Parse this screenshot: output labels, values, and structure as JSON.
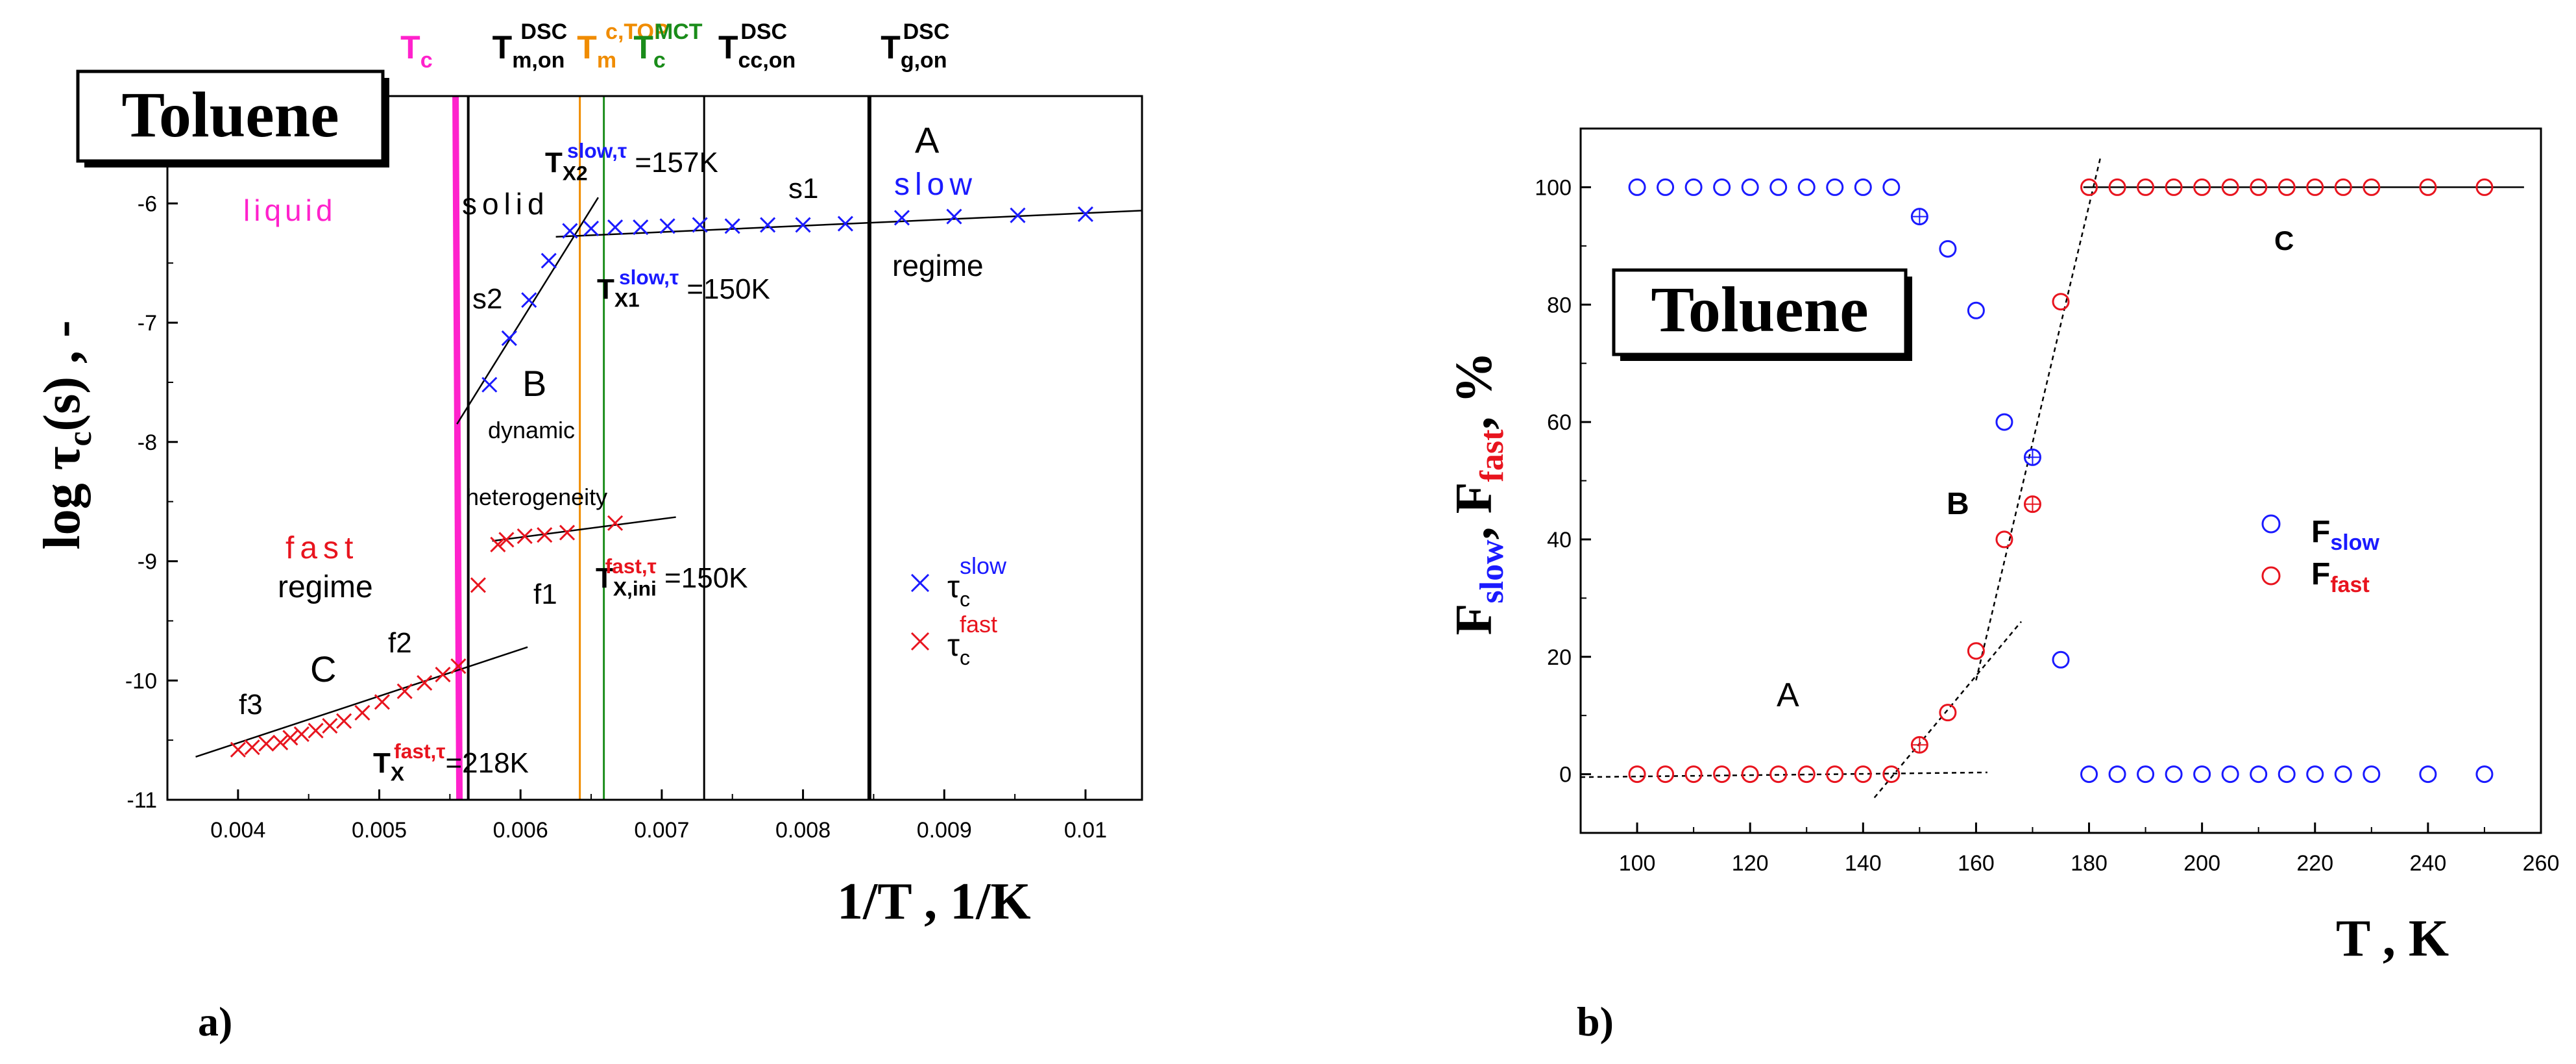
{
  "colors": {
    "blue": "#1a1aff",
    "red": "#e8141e",
    "magenta": "#ff22cc",
    "orange": "#f08c00",
    "green": "#1a8c1a",
    "black": "#000000"
  },
  "panel_labels": {
    "a": "a)",
    "b": "b)"
  },
  "chart_data": [
    {
      "id": "a",
      "type": "scatter",
      "title": "Toluene",
      "xlabel": "1/T , 1/K",
      "ylabel_parts": {
        "main": "log τ",
        "sub": "c",
        "tail": "(s) , -"
      },
      "xlim": [
        0.0035,
        0.0104
      ],
      "ylim": [
        -11,
        -5.1
      ],
      "xticks": [
        0.004,
        0.005,
        0.006,
        0.007,
        0.008,
        0.009,
        0.01
      ],
      "xtick_labels": [
        "0.004",
        "0.005",
        "0.006",
        "0.007",
        "0.008",
        "0.009",
        "0.01"
      ],
      "yticks": [
        -11,
        -10,
        -9,
        -8,
        -7,
        -6
      ],
      "ytick_labels": [
        "-11",
        "-10",
        "-9",
        "-8",
        "-7",
        "-6"
      ],
      "series": [
        {
          "name": "τc slow",
          "legend": {
            "main": "τ",
            "sub": "c",
            "sup": "slow"
          },
          "color": "#1a1aff",
          "marker": "x",
          "x": [
            0.00578,
            0.00592,
            0.00606,
            0.0062,
            0.00635,
            0.0065,
            0.00667,
            0.00685,
            0.00704,
            0.00727,
            0.0075,
            0.00775,
            0.008,
            0.0083,
            0.0087,
            0.00907,
            0.00952,
            0.01
          ],
          "y": [
            -7.52,
            -7.13,
            -6.81,
            -6.48,
            -6.23,
            -6.21,
            -6.2,
            -6.2,
            -6.19,
            -6.18,
            -6.19,
            -6.18,
            -6.18,
            -6.17,
            -6.12,
            -6.11,
            -6.1,
            -6.09
          ]
        },
        {
          "name": "τc fast",
          "legend": {
            "main": "τ",
            "sub": "c",
            "sup": "fast"
          },
          "color": "#e8141e",
          "marker": "x",
          "x": [
            0.004,
            0.0041,
            0.0042,
            0.0043,
            0.00437,
            0.00445,
            0.00455,
            0.00465,
            0.00475,
            0.00488,
            0.00502,
            0.00518,
            0.00532,
            0.00545,
            0.00556,
            0.0057,
            0.00584,
            0.0059,
            0.00603,
            0.00617,
            0.00633,
            0.00667
          ],
          "y": [
            -10.58,
            -10.56,
            -10.53,
            -10.52,
            -10.48,
            -10.45,
            -10.42,
            -10.38,
            -10.34,
            -10.27,
            -10.18,
            -10.09,
            -10.02,
            -9.95,
            -9.88,
            -9.2,
            -8.86,
            -8.82,
            -8.79,
            -8.78,
            -8.76,
            -8.68
          ]
        }
      ],
      "fit_lines": [
        {
          "name": "C",
          "x": [
            0.0037,
            0.00605
          ],
          "y": [
            -10.64,
            -9.72
          ]
        },
        {
          "name": "B",
          "x": [
            0.00555,
            0.00655
          ],
          "y": [
            -7.85,
            -5.95
          ]
        },
        {
          "name": "A",
          "x": [
            0.00625,
            0.0104
          ],
          "y": [
            -6.28,
            -6.06
          ]
        },
        {
          "name": "fast-het",
          "x": [
            0.0058,
            0.0071
          ],
          "y": [
            -8.83,
            -8.63
          ]
        }
      ],
      "vlines": [
        {
          "name": "Tc",
          "x": 0.00554,
          "color": "#ff22cc",
          "width": 10
        },
        {
          "name": "Tm,on DSC",
          "x": 0.00563,
          "color": "#000000",
          "width": 4
        },
        {
          "name": "Tm c,TOP",
          "x": 0.00642,
          "color": "#f08c00",
          "width": 3
        },
        {
          "name": "Tc MCT",
          "x": 0.00659,
          "color": "#1a8c1a",
          "width": 3
        },
        {
          "name": "Tcc,on DSC",
          "x": 0.0073,
          "color": "#000000",
          "width": 3
        },
        {
          "name": "Tg,on DSC",
          "x": 0.00847,
          "color": "#000000",
          "width": 6
        }
      ],
      "top_labels": [
        {
          "x": 0.00515,
          "main": "T",
          "sub": "c",
          "sup": "",
          "color": "#ff22cc"
        },
        {
          "x": 0.0058,
          "main": "T",
          "sub": "m,on",
          "sup": "DSC",
          "color": "#000000"
        },
        {
          "x": 0.0064,
          "main": "T",
          "sub": "m",
          "sup": "c,TOP",
          "color": "#f08c00"
        },
        {
          "x": 0.0068,
          "main": "T",
          "sub": "c",
          "sup": "MCT",
          "color": "#1a8c1a"
        },
        {
          "x": 0.0074,
          "main": "T",
          "sub": "cc,on",
          "sup": "DSC",
          "color": "#000000"
        },
        {
          "x": 0.00855,
          "main": "T",
          "sub": "g,on",
          "sup": "DSC",
          "color": "#000000"
        }
      ],
      "annotations": {
        "liquid": "liquid",
        "solid": "solid",
        "slow": "slow",
        "regime_slow": "regime",
        "fast": "fast",
        "regime_fast": "regime",
        "A": "A",
        "B": "B",
        "C": "C",
        "dynamic": "dynamic",
        "heterogeneity": "heterogeneity",
        "s1": "s1",
        "s2": "s2",
        "f1": "f1",
        "f2": "f2",
        "f3": "f3",
        "tx2": {
          "main": "T",
          "sub": "X2",
          "sup": "slow,τ",
          "tail": " =157K"
        },
        "tx1": {
          "main": "T",
          "sub": "X1",
          "sup": "slow,τ",
          "tail": " =150K"
        },
        "txini": {
          "main": "T",
          "sub": "X,ini",
          "sup": "fast,τ",
          "tail": " =150K"
        },
        "tx": {
          "main": "T",
          "sub": "X",
          "sup": "fast,τ",
          "tail": "=218K"
        }
      }
    },
    {
      "id": "b",
      "type": "scatter",
      "title": "Toluene",
      "xlabel": "T , K",
      "ylabel_parts": {
        "a": "F",
        "a_sub": "slow",
        "b": ", F",
        "b_sub": "fast",
        "c": ", %"
      },
      "xlim": [
        90,
        260
      ],
      "ylim": [
        -10,
        110
      ],
      "xticks": [
        100,
        120,
        140,
        160,
        180,
        200,
        220,
        240,
        260
      ],
      "xtick_labels": [
        "100",
        "120",
        "140",
        "160",
        "180",
        "200",
        "220",
        "240",
        "260"
      ],
      "yticks": [
        0,
        20,
        40,
        60,
        80,
        100
      ],
      "ytick_labels": [
        "0",
        "20",
        "40",
        "60",
        "80",
        "100"
      ],
      "series": [
        {
          "name": "F slow",
          "legend": {
            "main": "F",
            "sub": "slow"
          },
          "color": "#1a1aff",
          "marker": "circle",
          "x": [
            100,
            105,
            110,
            115,
            120,
            125,
            130,
            135,
            140,
            145,
            150,
            155,
            160,
            165,
            170,
            175,
            180,
            185,
            190,
            195,
            200,
            205,
            210,
            215,
            220,
            225,
            230,
            240,
            250
          ],
          "y": [
            100,
            100,
            100,
            100,
            100,
            100,
            100,
            100,
            100,
            100,
            95,
            89.5,
            79,
            60,
            54,
            19.5,
            0,
            0,
            0,
            0,
            0,
            0,
            0,
            0,
            0,
            0,
            0,
            0,
            0
          ],
          "crossed": [
            150,
            170
          ]
        },
        {
          "name": "F fast",
          "legend": {
            "main": "F",
            "sub": "fast"
          },
          "color": "#e8141e",
          "marker": "circle",
          "x": [
            100,
            105,
            110,
            115,
            120,
            125,
            130,
            135,
            140,
            145,
            150,
            155,
            160,
            165,
            170,
            175,
            180,
            185,
            190,
            195,
            200,
            205,
            210,
            215,
            220,
            225,
            230,
            240,
            250
          ],
          "y": [
            0,
            0,
            0,
            0,
            0,
            0,
            0,
            0,
            0,
            0,
            5,
            10.5,
            21,
            40,
            46,
            80.5,
            100,
            100,
            100,
            100,
            100,
            100,
            100,
            100,
            100,
            100,
            100,
            100,
            100
          ],
          "crossed": [
            150,
            170
          ]
        }
      ],
      "fit_lines": [
        {
          "name": "A",
          "x": [
            90,
            162
          ],
          "y": [
            -0.5,
            0.3
          ],
          "dashed": true
        },
        {
          "name": "B-low",
          "x": [
            142,
            168
          ],
          "y": [
            -4,
            26
          ],
          "dashed": true
        },
        {
          "name": "B-high",
          "x": [
            160,
            182
          ],
          "y": [
            16,
            105
          ],
          "dashed": true
        },
        {
          "name": "C",
          "x": [
            179,
            257
          ],
          "y": [
            100,
            100
          ],
          "dashed": false
        }
      ],
      "annotations": {
        "A": "A",
        "B": "B",
        "C": "C"
      }
    }
  ]
}
